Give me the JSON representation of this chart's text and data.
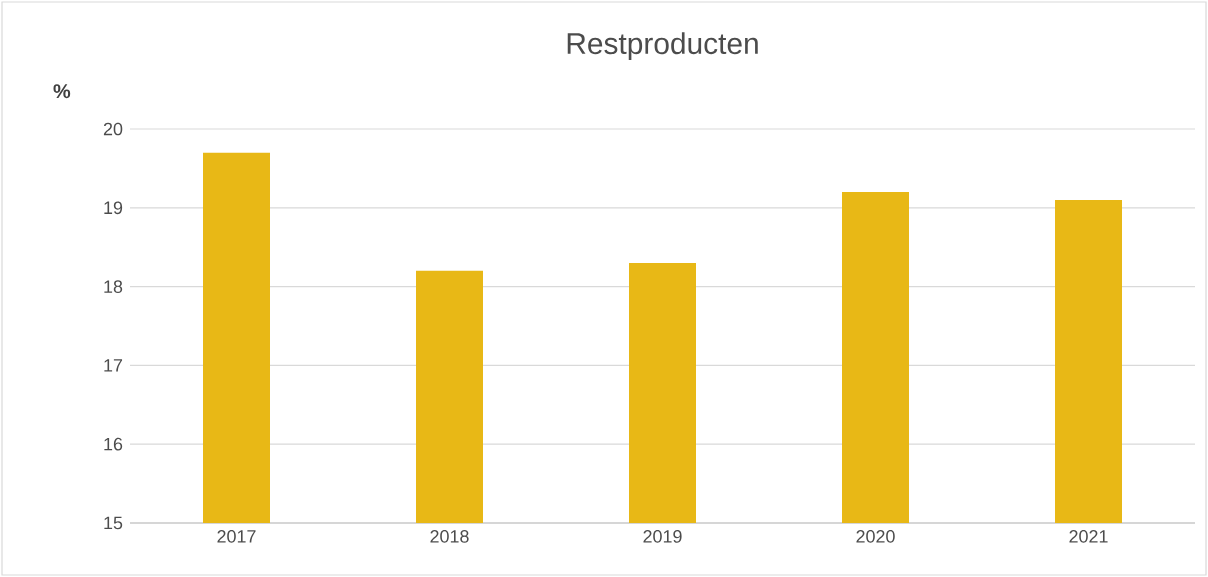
{
  "chart_data": {
    "type": "bar",
    "title": "Restproducten",
    "ylabel": "%",
    "categories": [
      "2017",
      "2018",
      "2019",
      "2020",
      "2021"
    ],
    "values": [
      19.7,
      18.2,
      18.3,
      19.2,
      19.1
    ],
    "color": "#e8b816",
    "ylim": [
      15,
      20
    ],
    "yticks": [
      15,
      16,
      17,
      18,
      19,
      20
    ],
    "grid": "y"
  }
}
